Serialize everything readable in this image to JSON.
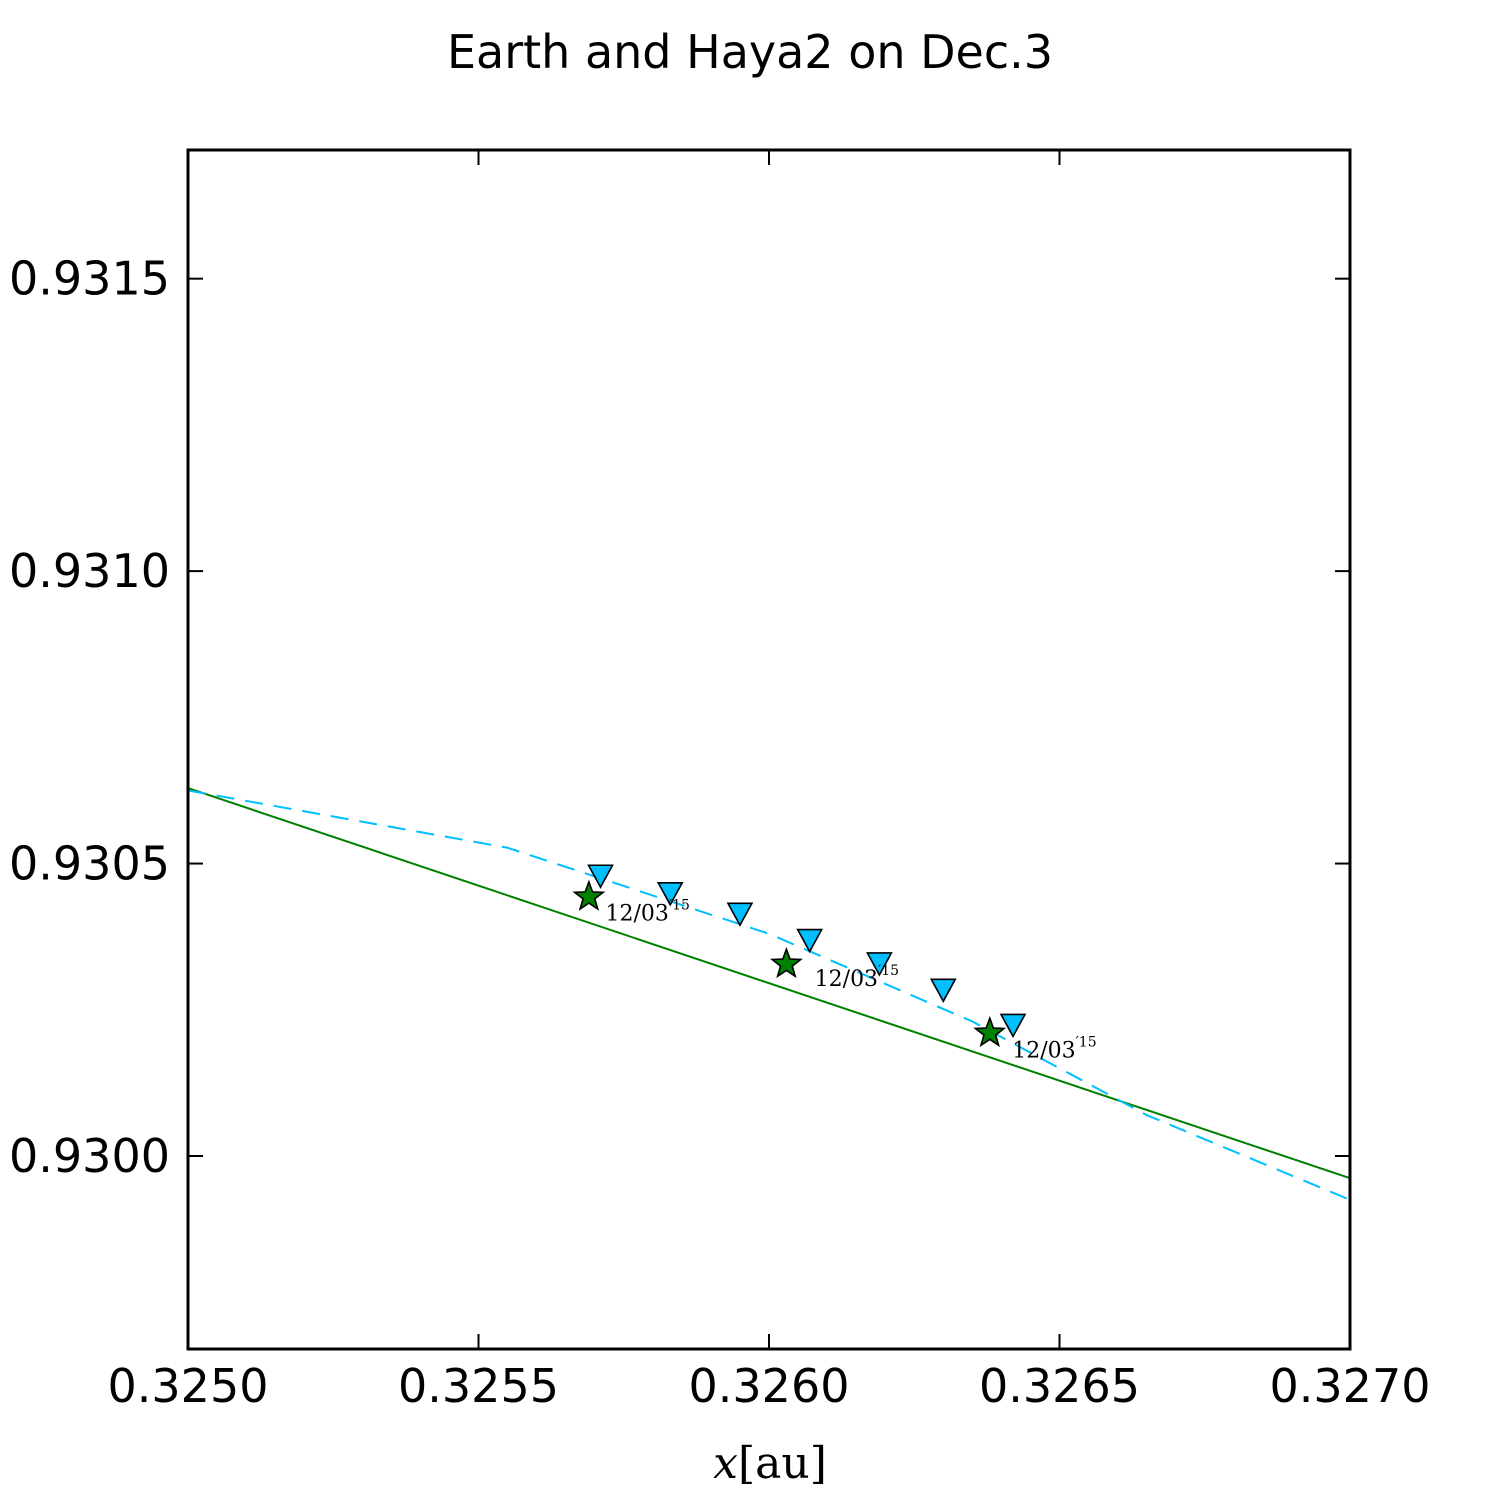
{
  "chart_data": {
    "type": "line",
    "title": "Earth and Haya2 on Dec.3",
    "xlabel_var": "x",
    "xlabel_unit": "[au]",
    "xlim": [
      0.325,
      0.327
    ],
    "ylim": [
      0.92967,
      0.93172
    ],
    "x_ticks": [
      "0.3250",
      "0.3255",
      "0.3260",
      "0.3265",
      "0.3270"
    ],
    "y_ticks": [
      "0.9300",
      "0.9305",
      "0.9310",
      "0.9315"
    ],
    "grid": false,
    "series": [
      {
        "kind": "solid-line",
        "color": "#008000",
        "x": [
          0.325,
          0.327
        ],
        "y": [
          0.930629,
          0.929962
        ]
      },
      {
        "kind": "dashed-line",
        "color": "#00bfff",
        "x": [
          0.325,
          0.32555,
          0.326,
          0.32635,
          0.32665,
          0.327
        ],
        "y": [
          0.930625,
          0.930527,
          0.93038,
          0.93023,
          0.93007,
          0.929925
        ]
      },
      {
        "kind": "star-markers",
        "color": "#008000",
        "x": [
          0.32569,
          0.32603,
          0.32638
        ],
        "y": [
          0.930443,
          0.930328,
          0.93021
        ]
      },
      {
        "kind": "triangle-markers",
        "color": "#00bfff",
        "x": [
          0.32571,
          0.32583,
          0.32595,
          0.32607,
          0.32619,
          0.3263,
          0.32642
        ],
        "y": [
          0.93048,
          0.93045,
          0.930415,
          0.93037,
          0.93033,
          0.930285,
          0.930225
        ]
      }
    ],
    "annotations": [
      {
        "text": "12/03",
        "sup": "′15",
        "x": 0.32571,
        "y": 0.930403
      },
      {
        "text": "12/03",
        "sup": "′15",
        "x": 0.32607,
        "y": 0.930291
      },
      {
        "text": "12/03",
        "sup": "′15",
        "x": 0.32641,
        "y": 0.930168
      }
    ]
  }
}
